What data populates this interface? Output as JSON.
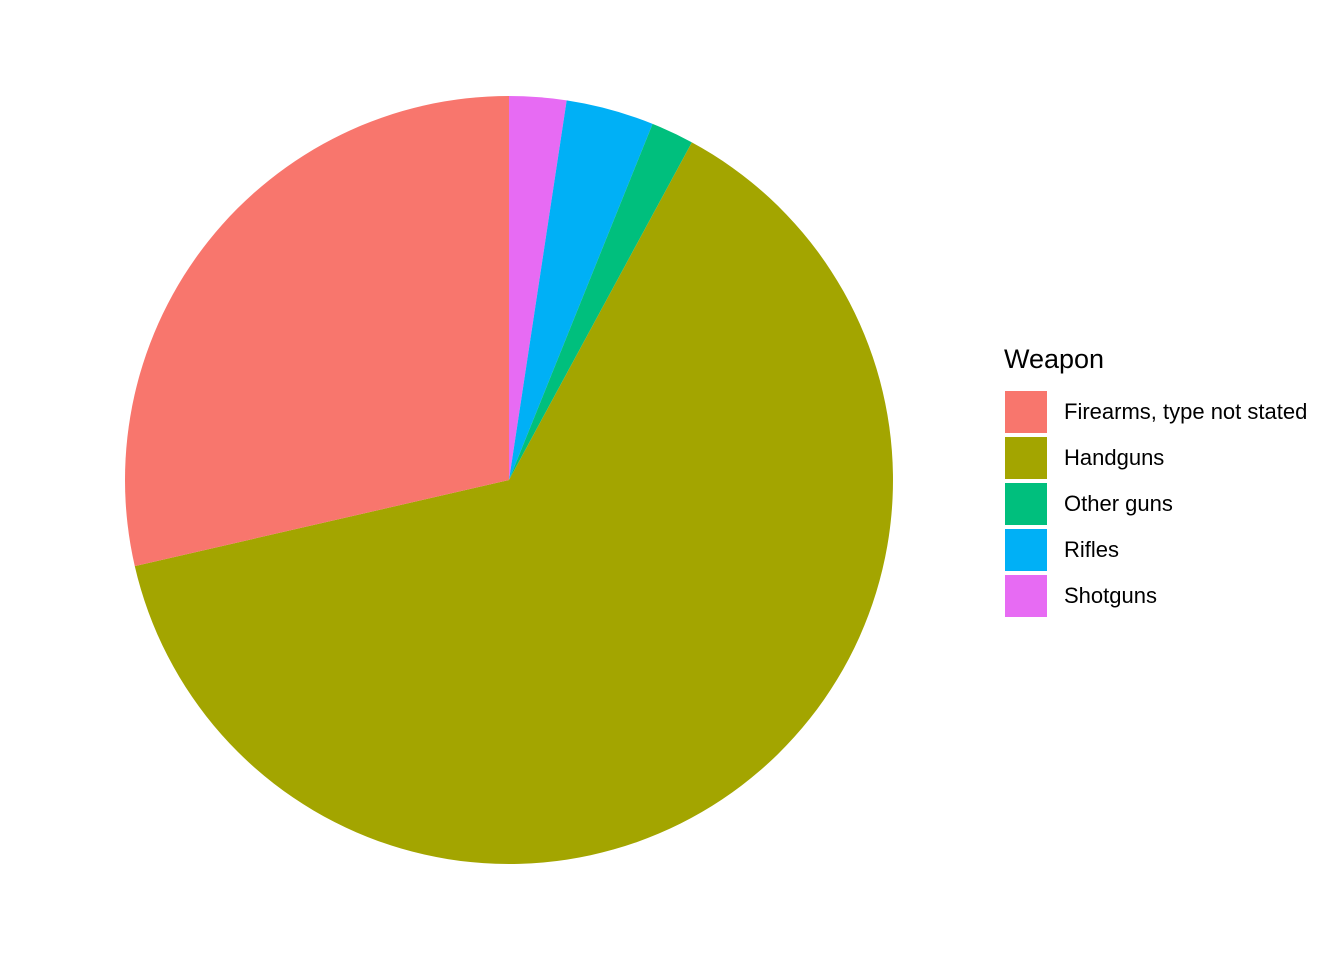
{
  "chart_data": {
    "type": "pie",
    "title": "",
    "legend": {
      "title": "Weapon",
      "placement": "right"
    },
    "slices": [
      {
        "name": "Shotguns",
        "value": 2.4,
        "color": "#E76BF3"
      },
      {
        "name": "Rifles",
        "value": 3.7,
        "color": "#00B0F6"
      },
      {
        "name": "Other guns",
        "value": 1.8,
        "color": "#00BF7D"
      },
      {
        "name": "Handguns",
        "value": 63.5,
        "color": "#A3A500"
      },
      {
        "name": "Firearms, type not stated",
        "value": 28.6,
        "color": "#F8766D"
      }
    ],
    "legend_order": [
      "Firearms, type not stated",
      "Handguns",
      "Other guns",
      "Rifles",
      "Shotguns"
    ]
  }
}
